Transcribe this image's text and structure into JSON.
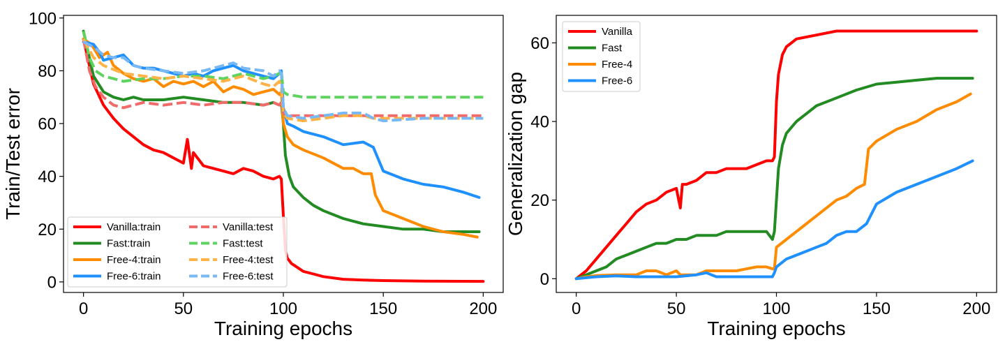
{
  "chart_data": [
    {
      "type": "line",
      "xlabel": "Training epochs",
      "ylabel": "Train/Test error",
      "xlim": [
        -10,
        210
      ],
      "ylim": [
        -4,
        101
      ],
      "xticks": [
        0,
        50,
        100,
        150,
        200
      ],
      "yticks": [
        0,
        20,
        40,
        60,
        80,
        100
      ],
      "legend_position": "lower-left",
      "legend_columns": 2,
      "series": [
        {
          "name": "Vanilla:train",
          "color": "#ff0000",
          "style": "solid",
          "x": [
            0,
            5,
            10,
            15,
            20,
            25,
            30,
            35,
            40,
            45,
            50,
            52,
            54,
            55,
            60,
            65,
            70,
            75,
            80,
            85,
            90,
            95,
            98,
            99,
            100,
            101,
            102,
            104,
            106,
            110,
            115,
            120,
            130,
            140,
            150,
            170,
            200
          ],
          "y": [
            92,
            75,
            67,
            62,
            58,
            55,
            52,
            50,
            49,
            47,
            45,
            54,
            43,
            49,
            44,
            43,
            42,
            41,
            43,
            42,
            40,
            39,
            40,
            39,
            25,
            12,
            9,
            7,
            6,
            4,
            3,
            2,
            1,
            0.7,
            0.5,
            0.3,
            0.2
          ]
        },
        {
          "name": "Fast:train",
          "color": "#228b22",
          "style": "solid",
          "x": [
            0,
            5,
            10,
            15,
            20,
            25,
            30,
            40,
            50,
            60,
            70,
            80,
            90,
            95,
            98,
            99,
            100,
            101,
            103,
            105,
            110,
            115,
            120,
            130,
            140,
            150,
            160,
            170,
            180,
            190,
            195,
            198
          ],
          "y": [
            95,
            78,
            72,
            70,
            69,
            70,
            69,
            69,
            70,
            69,
            68,
            68,
            67,
            68,
            67,
            68,
            60,
            48,
            40,
            36,
            32,
            29,
            27,
            24,
            22,
            21,
            20,
            20,
            19,
            19,
            19,
            19
          ]
        },
        {
          "name": "Free-4:train",
          "color": "#ff8c00",
          "style": "solid",
          "x": [
            0,
            4,
            8,
            12,
            15,
            20,
            25,
            30,
            35,
            40,
            45,
            50,
            55,
            60,
            65,
            70,
            75,
            80,
            85,
            90,
            95,
            98,
            99,
            100,
            102,
            105,
            110,
            120,
            130,
            135,
            140,
            144,
            146,
            150,
            160,
            170,
            180,
            190,
            197
          ],
          "y": [
            92,
            90,
            85,
            87,
            82,
            79,
            77,
            76,
            77,
            74,
            76,
            75,
            76,
            74,
            76,
            72,
            74,
            73,
            71,
            72,
            73,
            71,
            72,
            60,
            55,
            52,
            50,
            47,
            43,
            43,
            41,
            41,
            33,
            27,
            24,
            21,
            19,
            18,
            17
          ]
        },
        {
          "name": "Free-6:train",
          "color": "#1e90ff",
          "style": "solid",
          "x": [
            0,
            5,
            8,
            10,
            15,
            20,
            25,
            30,
            35,
            40,
            45,
            50,
            55,
            60,
            65,
            70,
            75,
            80,
            85,
            90,
            95,
            98,
            99,
            100,
            102,
            105,
            110,
            120,
            130,
            140,
            145,
            150,
            160,
            170,
            180,
            190,
            198
          ],
          "y": [
            91,
            90,
            87,
            84,
            85,
            86,
            82,
            81,
            81,
            80,
            79,
            78,
            79,
            78,
            80,
            81,
            82,
            80,
            79,
            78,
            77,
            79,
            80,
            66,
            60,
            59,
            57,
            55,
            52,
            53,
            51,
            42,
            39,
            37,
            36,
            34,
            32
          ]
        },
        {
          "name": "Vanilla:test",
          "color": "#f26b6b",
          "style": "dashed",
          "x": [
            0,
            3,
            6,
            10,
            15,
            20,
            25,
            30,
            40,
            50,
            60,
            70,
            80,
            90,
            95,
            98,
            99,
            100,
            103,
            110,
            120,
            130,
            140,
            150,
            170,
            200
          ],
          "y": [
            92,
            80,
            74,
            70,
            67,
            66,
            67,
            68,
            67,
            68,
            67,
            68,
            68,
            67,
            68,
            67,
            68,
            64,
            63,
            63,
            63,
            63,
            63,
            63,
            63,
            63
          ]
        },
        {
          "name": "Fast:test",
          "color": "#5fd35f",
          "style": "dashed",
          "x": [
            0,
            3,
            6,
            10,
            15,
            20,
            30,
            40,
            50,
            60,
            70,
            80,
            90,
            95,
            98,
            99,
            100,
            102,
            110,
            120,
            150,
            200
          ],
          "y": [
            95,
            85,
            80,
            78,
            77,
            76,
            77,
            77,
            78,
            78,
            77,
            79,
            77,
            78,
            79,
            80,
            72,
            71,
            70,
            70,
            70,
            70
          ]
        },
        {
          "name": "Free-4:test",
          "color": "#ffb347",
          "style": "dashed",
          "x": [
            0,
            5,
            10,
            20,
            30,
            40,
            50,
            60,
            70,
            80,
            90,
            95,
            98,
            99,
            100,
            102,
            110,
            120,
            130,
            140,
            145,
            150,
            170,
            200
          ],
          "y": [
            92,
            85,
            82,
            79,
            78,
            77,
            78,
            77,
            76,
            78,
            75,
            74,
            76,
            74,
            64,
            62,
            61,
            62,
            63,
            63,
            62,
            62,
            62,
            62
          ]
        },
        {
          "name": "Free-6:test",
          "color": "#78b8f5",
          "style": "dashed",
          "x": [
            0,
            5,
            10,
            15,
            20,
            25,
            30,
            40,
            50,
            60,
            70,
            75,
            80,
            90,
            95,
            98,
            99,
            100,
            102,
            110,
            120,
            130,
            140,
            145,
            150,
            170,
            200
          ],
          "y": [
            91,
            89,
            86,
            85,
            85,
            82,
            81,
            80,
            79,
            80,
            82,
            83,
            81,
            80,
            78,
            80,
            79,
            66,
            63,
            62,
            63,
            64,
            64,
            62,
            61,
            62,
            62
          ]
        }
      ]
    },
    {
      "type": "line",
      "xlabel": "Training epochs",
      "ylabel": "Generalization gap",
      "xlim": [
        -10,
        210
      ],
      "ylim": [
        -3.5,
        67
      ],
      "xticks": [
        0,
        50,
        100,
        150,
        200
      ],
      "yticks": [
        0,
        20,
        40,
        60
      ],
      "legend_position": "top-left",
      "legend_columns": 1,
      "series": [
        {
          "name": "Vanilla",
          "color": "#ff0000",
          "style": "solid",
          "x": [
            0,
            5,
            10,
            15,
            20,
            25,
            30,
            35,
            40,
            45,
            50,
            52,
            53,
            55,
            60,
            65,
            70,
            75,
            80,
            85,
            90,
            95,
            98,
            99,
            100,
            101,
            103,
            105,
            110,
            120,
            130,
            150,
            175,
            200
          ],
          "y": [
            0,
            2,
            5,
            8,
            11,
            14,
            17,
            19,
            20,
            22,
            23,
            18,
            24,
            24,
            25,
            27,
            27,
            28,
            28,
            28,
            29,
            30,
            30,
            31,
            45,
            52,
            57,
            59,
            61,
            62,
            63,
            63,
            63,
            63
          ]
        },
        {
          "name": "Fast",
          "color": "#228b22",
          "style": "solid",
          "x": [
            0,
            5,
            10,
            15,
            20,
            25,
            30,
            35,
            40,
            45,
            50,
            55,
            60,
            65,
            70,
            75,
            80,
            85,
            90,
            95,
            98,
            99,
            100,
            101,
            103,
            105,
            110,
            115,
            120,
            130,
            140,
            150,
            160,
            170,
            180,
            190,
            198
          ],
          "y": [
            0,
            1,
            2,
            3,
            5,
            6,
            7,
            8,
            9,
            9,
            10,
            10,
            11,
            11,
            11,
            12,
            12,
            12,
            12,
            12,
            10,
            12,
            20,
            28,
            34,
            37,
            40,
            42,
            44,
            46,
            48,
            49.5,
            50,
            50.5,
            51,
            51,
            51
          ]
        },
        {
          "name": "Free-4",
          "color": "#ff8c00",
          "style": "solid",
          "x": [
            0,
            5,
            10,
            20,
            30,
            35,
            40,
            45,
            50,
            52,
            55,
            60,
            65,
            70,
            75,
            80,
            85,
            90,
            95,
            98,
            99,
            100,
            105,
            110,
            115,
            120,
            125,
            130,
            135,
            140,
            144,
            146,
            150,
            160,
            170,
            180,
            190,
            197
          ],
          "y": [
            0,
            0.5,
            0.8,
            1,
            1,
            2,
            2,
            1,
            2,
            1,
            1,
            1,
            2,
            2,
            2,
            2,
            2.5,
            3,
            3,
            2.5,
            2.5,
            8,
            10,
            12,
            14,
            16,
            18,
            20,
            21,
            23,
            24,
            33,
            35,
            38,
            40,
            43,
            45,
            47
          ]
        },
        {
          "name": "Free-6",
          "color": "#1e90ff",
          "style": "solid",
          "x": [
            0,
            10,
            20,
            30,
            40,
            50,
            60,
            65,
            70,
            80,
            90,
            95,
            98,
            99,
            100,
            105,
            110,
            115,
            120,
            125,
            130,
            135,
            140,
            145,
            150,
            160,
            170,
            180,
            190,
            198
          ],
          "y": [
            0,
            0.5,
            0.7,
            0.5,
            0.5,
            0.5,
            1,
            1.5,
            0.5,
            0.5,
            0.5,
            0.5,
            0.5,
            1.5,
            3,
            5,
            6,
            7,
            8,
            9,
            11,
            12,
            12,
            14,
            19,
            22,
            24,
            26,
            28,
            30
          ]
        }
      ]
    }
  ]
}
